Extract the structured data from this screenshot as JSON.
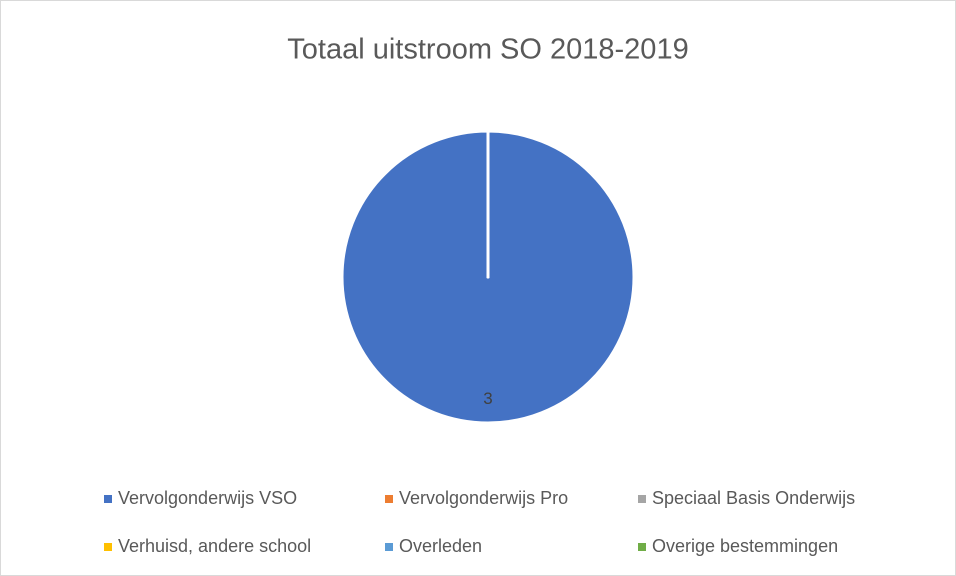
{
  "chart_data": {
    "type": "pie",
    "title": "Totaal uitstroom SO 2018-2019",
    "categories": [
      "Vervolgonderwijs VSO",
      "Vervolgonderwijs Pro",
      "Speciaal Basis Onderwijs",
      "Verhuisd, andere school",
      "Overleden",
      "Overige bestemmingen"
    ],
    "values": [
      3,
      0,
      0,
      0,
      0,
      0
    ],
    "colors": [
      "#4472c4",
      "#ed7d31",
      "#a5a5a5",
      "#ffc000",
      "#5b9bd5",
      "#70ad47"
    ],
    "legend": "bottom"
  }
}
